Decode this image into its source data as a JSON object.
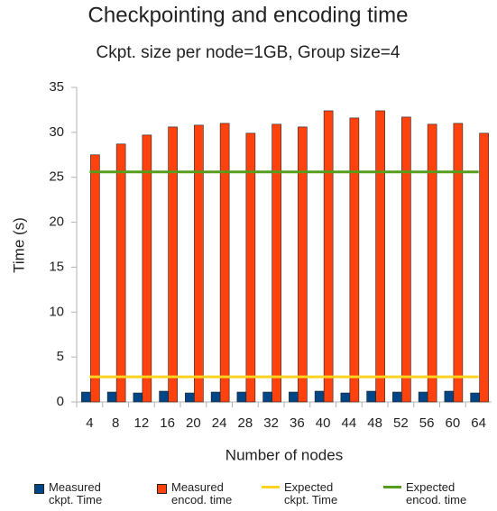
{
  "chart_data": {
    "type": "bar",
    "title": "Checkpointing and encoding time",
    "subtitle": "Ckpt. size per node=1GB, Group size=4",
    "x_label": "Number of nodes",
    "y_label": "Time (s)",
    "categories": [
      "4",
      "8",
      "12",
      "16",
      "20",
      "24",
      "28",
      "32",
      "36",
      "40",
      "44",
      "48",
      "52",
      "56",
      "60",
      "64"
    ],
    "series": [
      {
        "name": "Measured ckpt. Time",
        "type": "bar",
        "color": "#004586",
        "values": [
          1.1,
          1.1,
          1.0,
          1.2,
          1.0,
          1.1,
          1.1,
          1.1,
          1.1,
          1.2,
          1.0,
          1.2,
          1.1,
          1.1,
          1.2,
          1.0
        ]
      },
      {
        "name": "Measured encod. time",
        "type": "bar",
        "color": "#ff420e",
        "values": [
          27.5,
          28.7,
          29.7,
          30.6,
          30.8,
          31.0,
          29.9,
          30.9,
          30.6,
          32.4,
          31.6,
          32.4,
          31.7,
          30.9,
          31.0,
          29.9
        ]
      },
      {
        "name": "Expected ckpt. Time",
        "type": "line",
        "color": "#ffd320",
        "values": [
          2.8,
          2.8,
          2.8,
          2.8,
          2.8,
          2.8,
          2.8,
          2.8,
          2.8,
          2.8,
          2.8,
          2.8,
          2.8,
          2.8,
          2.8,
          2.8
        ]
      },
      {
        "name": "Expected encod. time",
        "type": "line",
        "color": "#579d1c",
        "values": [
          25.6,
          25.6,
          25.6,
          25.6,
          25.6,
          25.6,
          25.6,
          25.6,
          25.6,
          25.6,
          25.6,
          25.6,
          25.6,
          25.6,
          25.6,
          25.6
        ]
      }
    ],
    "ylim": [
      0,
      35
    ],
    "yticks": [
      0,
      5,
      10,
      15,
      20,
      25,
      30,
      35
    ],
    "grid": false
  }
}
